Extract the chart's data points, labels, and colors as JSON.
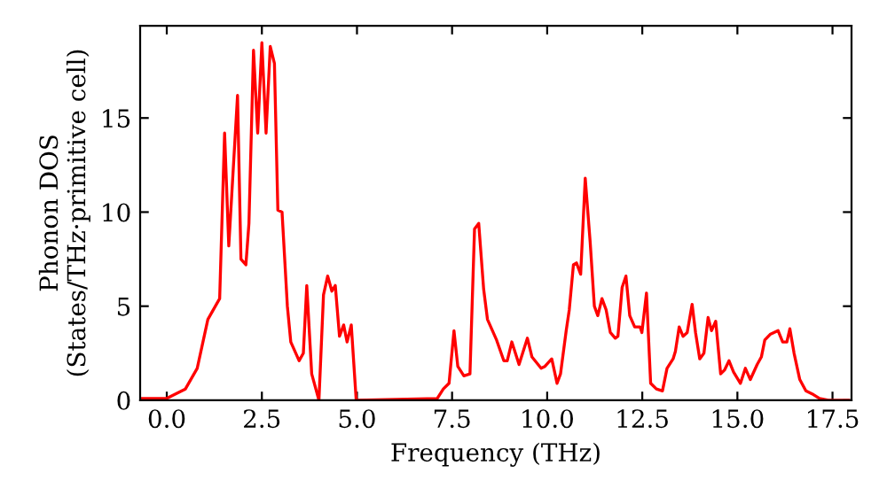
{
  "chart_data": {
    "type": "line",
    "xlabel": "Frequency (THz)",
    "ylabel": "Phonon DOS\n(States/THz·primitive cell)",
    "xlim": [
      -0.7,
      18.0
    ],
    "ylim": [
      0,
      19.9
    ],
    "xticks": [
      {
        "value": 0,
        "label": "0.0"
      },
      {
        "value": 2.5,
        "label": "2.5"
      },
      {
        "value": 5,
        "label": "5.0"
      },
      {
        "value": 7.5,
        "label": "7.5"
      },
      {
        "value": 10,
        "label": "10.0"
      },
      {
        "value": 12.5,
        "label": "12.5"
      },
      {
        "value": 15,
        "label": "15.0"
      },
      {
        "value": 17.5,
        "label": "17.5"
      }
    ],
    "yticks": [
      0,
      5,
      10,
      15
    ],
    "grid": false,
    "marker": "none",
    "line_style": "solid",
    "series": [
      {
        "color": "#ff0000",
        "x": [
          -0.7,
          0.0,
          0.49,
          0.8,
          1.08,
          1.39,
          1.52,
          1.63,
          1.86,
          1.95,
          2.08,
          2.16,
          2.28,
          2.39,
          2.5,
          2.61,
          2.72,
          2.83,
          2.92,
          3.03,
          3.17,
          3.26,
          3.48,
          3.59,
          3.68,
          3.81,
          4.0,
          4.12,
          4.23,
          4.34,
          4.43,
          4.54,
          4.65,
          4.74,
          4.85,
          4.98,
          7.11,
          7.27,
          7.42,
          7.55,
          7.65,
          7.81,
          7.97,
          8.09,
          8.2,
          8.33,
          8.43,
          8.67,
          8.86,
          8.95,
          9.07,
          9.26,
          9.48,
          9.6,
          9.84,
          9.94,
          10.12,
          10.26,
          10.35,
          10.5,
          10.58,
          10.69,
          10.77,
          10.88,
          11.0,
          11.13,
          11.24,
          11.33,
          11.44,
          11.55,
          11.66,
          11.79,
          11.86,
          11.97,
          12.07,
          12.17,
          12.3,
          12.44,
          12.49,
          12.61,
          12.72,
          12.87,
          13.03,
          13.15,
          13.31,
          13.37,
          13.47,
          13.57,
          13.68,
          13.81,
          13.9,
          14.01,
          14.12,
          14.23,
          14.32,
          14.43,
          14.56,
          14.66,
          14.78,
          14.9,
          15.08,
          15.21,
          15.34,
          15.52,
          15.63,
          15.72,
          15.86,
          16.07,
          16.19,
          16.3,
          16.38,
          16.49,
          16.64,
          16.8,
          17.0,
          17.16,
          17.39,
          17.92
        ],
        "values": [
          0.1,
          0.1,
          0.6,
          1.7,
          4.3,
          5.4,
          14.2,
          8.2,
          16.2,
          7.5,
          7.2,
          9.4,
          18.6,
          14.2,
          19.0,
          14.2,
          18.8,
          17.9,
          10.1,
          10.0,
          5.0,
          3.1,
          2.1,
          2.5,
          6.1,
          1.4,
          0,
          5.6,
          6.6,
          5.8,
          6.1,
          3.4,
          4.0,
          3.1,
          4.0,
          0,
          0.1,
          0.6,
          0.9,
          3.7,
          1.8,
          1.3,
          1.4,
          9.1,
          9.4,
          5.9,
          4.3,
          3.2,
          2.1,
          2.1,
          3.1,
          1.9,
          3.3,
          2.3,
          1.7,
          1.8,
          2.2,
          0.9,
          1.4,
          3.7,
          4.8,
          7.2,
          7.3,
          6.7,
          11.8,
          8.4,
          5.0,
          4.5,
          5.4,
          4.8,
          3.6,
          3.3,
          3.4,
          6.0,
          6.6,
          4.5,
          3.9,
          3.9,
          3.6,
          5.7,
          0.9,
          0.6,
          0.5,
          1.7,
          2.2,
          2.6,
          3.9,
          3.4,
          3.6,
          5.1,
          3.6,
          2.2,
          2.5,
          4.4,
          3.7,
          4.2,
          1.4,
          1.6,
          2.1,
          1.5,
          0.9,
          1.7,
          1.1,
          1.9,
          2.3,
          3.2,
          3.5,
          3.7,
          3.1,
          3.1,
          3.8,
          2.5,
          1.1,
          0.5,
          0.3,
          0.1,
          0,
          0
        ]
      }
    ]
  }
}
